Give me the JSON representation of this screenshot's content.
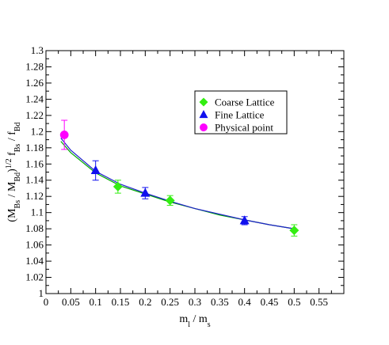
{
  "chart_data": {
    "type": "scatter",
    "title": "",
    "xlabel": "m_l / m_s",
    "ylabel": "(M_Bs / M_Bd)^1/2 f_Bs / f_Bd",
    "xlim": [
      0,
      0.6
    ],
    "ylim": [
      1.0,
      1.3
    ],
    "x_ticks": [
      "0",
      "0.05",
      "0.1",
      "0.15",
      "0.2",
      "0.25",
      "0.3",
      "0.35",
      "0.4",
      "0.45",
      "0.5",
      "0.55"
    ],
    "y_ticks": [
      "1",
      "1.02",
      "1.04",
      "1.06",
      "1.08",
      "1.1",
      "1.12",
      "1.14",
      "1.16",
      "1.18",
      "1.2",
      "1.22",
      "1.24",
      "1.26",
      "1.28",
      "1.3"
    ],
    "grid": false,
    "legend_position": "top-right",
    "series": [
      {
        "name": "Coarse Lattice",
        "marker": "diamond",
        "color": "#33ee11",
        "points": [
          {
            "x": 0.145,
            "y": 1.132,
            "err": 0.008
          },
          {
            "x": 0.25,
            "y": 1.115,
            "err": 0.006
          },
          {
            "x": 0.5,
            "y": 1.078,
            "err": 0.007
          }
        ]
      },
      {
        "name": "Fine Lattice",
        "marker": "triangle",
        "color": "#1010ee",
        "points": [
          {
            "x": 0.1,
            "y": 1.152,
            "err": 0.012
          },
          {
            "x": 0.2,
            "y": 1.124,
            "err": 0.007
          },
          {
            "x": 0.4,
            "y": 1.09,
            "err": 0.005
          }
        ]
      },
      {
        "name": "Physical point",
        "marker": "circle",
        "color": "#ff00ff",
        "points": [
          {
            "x": 0.037,
            "y": 1.196,
            "err": 0.018
          }
        ]
      }
    ],
    "fit_lines": [
      {
        "color": "#00aa00",
        "points": [
          [
            0.03,
            1.188
          ],
          [
            0.05,
            1.174
          ],
          [
            0.1,
            1.149
          ],
          [
            0.15,
            1.133
          ],
          [
            0.2,
            1.123
          ],
          [
            0.25,
            1.113
          ],
          [
            0.3,
            1.105
          ],
          [
            0.35,
            1.097
          ],
          [
            0.4,
            1.091
          ],
          [
            0.45,
            1.085
          ],
          [
            0.5,
            1.08
          ]
        ]
      },
      {
        "color": "#2020cc",
        "points": [
          [
            0.03,
            1.192
          ],
          [
            0.05,
            1.177
          ],
          [
            0.1,
            1.151
          ],
          [
            0.15,
            1.135
          ],
          [
            0.2,
            1.124
          ],
          [
            0.25,
            1.114
          ],
          [
            0.3,
            1.105
          ],
          [
            0.35,
            1.098
          ],
          [
            0.4,
            1.091
          ],
          [
            0.45,
            1.085
          ],
          [
            0.5,
            1.08
          ]
        ]
      }
    ]
  }
}
